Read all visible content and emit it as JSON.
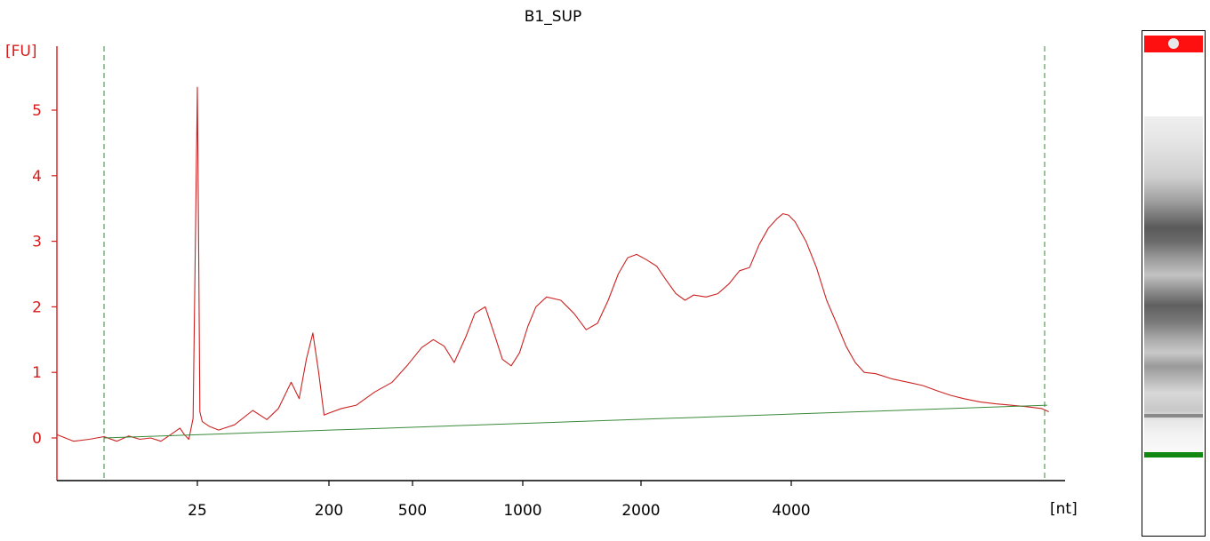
{
  "chart_data": {
    "type": "line",
    "title": "B1_SUP",
    "ylabel": "[FU]",
    "xlabel": "[nt]",
    "y_ticks": [
      "0",
      "1",
      "2",
      "3",
      "4",
      "5"
    ],
    "x_ticks": [
      "25",
      "200",
      "500",
      "1000",
      "2000",
      "4000"
    ],
    "ylim": [
      -0.65,
      5.9
    ],
    "x_scale": "nonlinear (size ladder)",
    "x_tick_positions_nt": [
      25,
      200,
      500,
      1000,
      2000,
      4000
    ],
    "grid": false,
    "series": [
      {
        "color": "#cc2222",
        "points_nt_fu": [
          [
            13,
            0.05
          ],
          [
            14,
            -0.05
          ],
          [
            15,
            -0.02
          ],
          [
            16,
            0.02
          ],
          [
            17,
            -0.05
          ],
          [
            18,
            0.03
          ],
          [
            19,
            -0.02
          ],
          [
            20,
            0.0
          ],
          [
            21,
            -0.05
          ],
          [
            22,
            0.05
          ],
          [
            23,
            0.15
          ],
          [
            23.5,
            0.05
          ],
          [
            24,
            -0.02
          ],
          [
            24.5,
            0.3
          ],
          [
            25,
            5.35
          ],
          [
            25.5,
            3.0
          ],
          [
            26,
            0.4
          ],
          [
            27,
            0.25
          ],
          [
            30,
            0.18
          ],
          [
            35,
            0.12
          ],
          [
            45,
            0.2
          ],
          [
            60,
            0.42
          ],
          [
            75,
            0.28
          ],
          [
            90,
            0.45
          ],
          [
            110,
            0.85
          ],
          [
            125,
            0.6
          ],
          [
            140,
            1.2
          ],
          [
            155,
            1.6
          ],
          [
            170,
            1.0
          ],
          [
            185,
            0.35
          ],
          [
            200,
            0.38
          ],
          [
            230,
            0.45
          ],
          [
            270,
            0.5
          ],
          [
            330,
            0.7
          ],
          [
            400,
            0.85
          ],
          [
            470,
            1.1
          ],
          [
            530,
            1.38
          ],
          [
            570,
            1.5
          ],
          [
            610,
            1.4
          ],
          [
            650,
            1.15
          ],
          [
            700,
            1.55
          ],
          [
            740,
            1.9
          ],
          [
            790,
            2.0
          ],
          [
            840,
            1.55
          ],
          [
            880,
            1.2
          ],
          [
            930,
            1.1
          ],
          [
            980,
            1.3
          ],
          [
            1030,
            1.7
          ],
          [
            1080,
            2.0
          ],
          [
            1150,
            2.15
          ],
          [
            1250,
            2.1
          ],
          [
            1350,
            1.9
          ],
          [
            1450,
            1.65
          ],
          [
            1550,
            1.75
          ],
          [
            1650,
            2.1
          ],
          [
            1750,
            2.5
          ],
          [
            1850,
            2.75
          ],
          [
            1950,
            2.8
          ],
          [
            2050,
            2.72
          ],
          [
            2150,
            2.62
          ],
          [
            2250,
            2.4
          ],
          [
            2350,
            2.2
          ],
          [
            2450,
            2.1
          ],
          [
            2550,
            2.18
          ],
          [
            2700,
            2.15
          ],
          [
            2850,
            2.2
          ],
          [
            3000,
            2.35
          ],
          [
            3150,
            2.55
          ],
          [
            3300,
            2.6
          ],
          [
            3450,
            2.95
          ],
          [
            3600,
            3.2
          ],
          [
            3750,
            3.35
          ],
          [
            3850,
            3.42
          ],
          [
            3950,
            3.4
          ],
          [
            4050,
            3.3
          ],
          [
            4200,
            3.0
          ],
          [
            4350,
            2.6
          ],
          [
            4500,
            2.1
          ],
          [
            4650,
            1.75
          ],
          [
            4800,
            1.4
          ],
          [
            4950,
            1.15
          ],
          [
            5100,
            1.0
          ],
          [
            5300,
            0.98
          ],
          [
            5600,
            0.9
          ],
          [
            5900,
            0.85
          ],
          [
            6200,
            0.8
          ],
          [
            6500,
            0.72
          ],
          [
            6800,
            0.65
          ],
          [
            7100,
            0.6
          ],
          [
            7500,
            0.55
          ],
          [
            7900,
            0.52
          ],
          [
            8300,
            0.5
          ],
          [
            8700,
            0.48
          ],
          [
            9200,
            0.45
          ],
          [
            9800,
            0.4
          ]
        ]
      },
      {
        "color": "#3a8a3a",
        "role": "baseline",
        "points_nt_fu": [
          [
            16,
            0.0
          ],
          [
            9600,
            0.5
          ]
        ]
      }
    ],
    "markers_nt": [
      16,
      9300
    ],
    "gel_lane": {
      "marker_top_color": "#ff1010",
      "marker_bottom_color": "#118811"
    }
  }
}
